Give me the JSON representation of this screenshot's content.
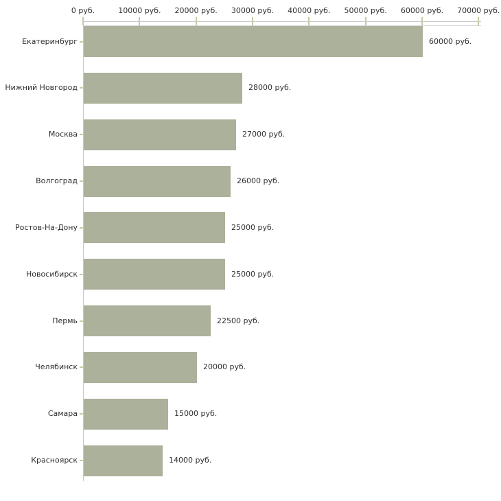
{
  "chart_data": {
    "type": "bar",
    "orientation": "horizontal",
    "title": "",
    "xlabel": "",
    "ylabel": "",
    "xlim": [
      0,
      70000
    ],
    "grid": false,
    "legend": "none",
    "axis_position": "top",
    "categories": [
      "Екатеринбург",
      "Нижний Новгород",
      "Москва",
      "Волгоград",
      "Ростов-На-Дону",
      "Новосибирск",
      "Пермь",
      "Челябинск",
      "Самара",
      "Красноярск"
    ],
    "values": [
      60000,
      28000,
      27000,
      26000,
      25000,
      25000,
      22500,
      20000,
      15000,
      14000
    ],
    "value_labels": [
      "60000 руб.",
      "28000 руб.",
      "27000 руб.",
      "26000 руб.",
      "25000 руб.",
      "25000 руб.",
      "22500 руб.",
      "20000 руб.",
      "15000 руб.",
      "14000 руб."
    ],
    "x_axis": {
      "tick_labels": [
        "0 руб.",
        "10000 руб.",
        "20000 руб.",
        "30000 руб.",
        "40000 руб.",
        "50000 руб.",
        "60000 руб.",
        "70000 руб."
      ],
      "tick_values": [
        0,
        10000,
        20000,
        30000,
        40000,
        50000,
        60000,
        70000
      ]
    },
    "colors": {
      "bar_fill": "#ABB19A",
      "axis_line": "#C8C8C8",
      "tick_mark": "#C5C9A5",
      "text": "#2F2F2F",
      "background": "#FFFFFF"
    }
  }
}
